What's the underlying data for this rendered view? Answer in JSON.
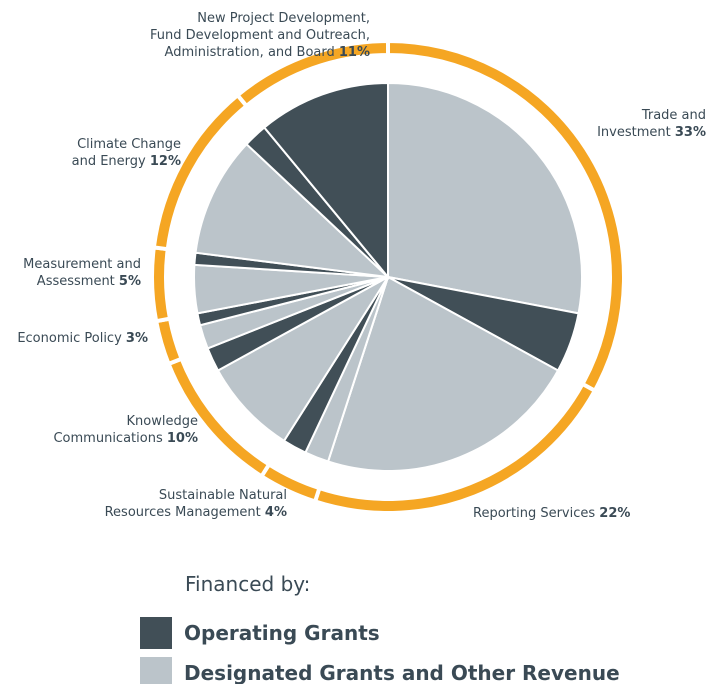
{
  "chart_data": {
    "type": "pie",
    "categories": [
      "Trade and\nInvestment",
      "Reporting Services",
      "Sustainable Natural\nResources Management",
      "Knowledge\nCommunications",
      "Economic Policy",
      "Measurement and\nAssessment",
      "Climate Change\nand Energy",
      "New Project Development,\nFund Development and Outreach,\nAdministration, and Board"
    ],
    "values": [
      33,
      22,
      4,
      10,
      3,
      5,
      12,
      11
    ],
    "value_labels": [
      "33%",
      "22%",
      "4%",
      "10%",
      "3%",
      "5%",
      "12%",
      "11%"
    ],
    "ring_color": "#f5a623",
    "legend_title": "Financed by:",
    "series": [
      {
        "name": "Designated Grants and Other Revenue",
        "color": "#bbc4ca",
        "values": [
          28,
          22,
          2,
          8,
          2,
          4,
          10,
          0
        ]
      },
      {
        "name": "Operating Grants",
        "color": "#414f57",
        "values": [
          5,
          0,
          2,
          2,
          1,
          1,
          2,
          11
        ]
      }
    ]
  }
}
